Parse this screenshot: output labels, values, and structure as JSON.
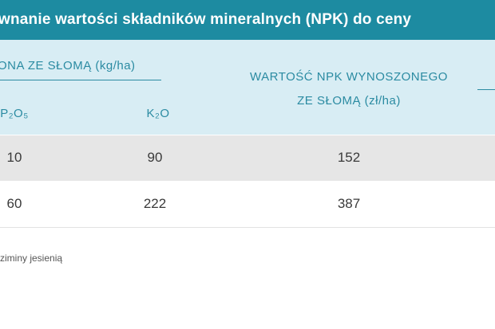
{
  "header": {
    "title": "wnanie wartości składników mineralnych (NPK) do ceny"
  },
  "table": {
    "group_header": "ONA ZE SŁOMĄ (kg/ha)",
    "value_header": [
      "WARTOŚĆ NPK WYNOSZONEGO",
      "ZE SŁOMĄ (zł/ha)"
    ],
    "subheaders": [
      "P₂O₅",
      "K₂O"
    ],
    "rows": [
      [
        "10",
        "90",
        "152"
      ],
      [
        "60",
        "222",
        "387"
      ]
    ]
  },
  "footnote": "ziminy jesienią"
}
